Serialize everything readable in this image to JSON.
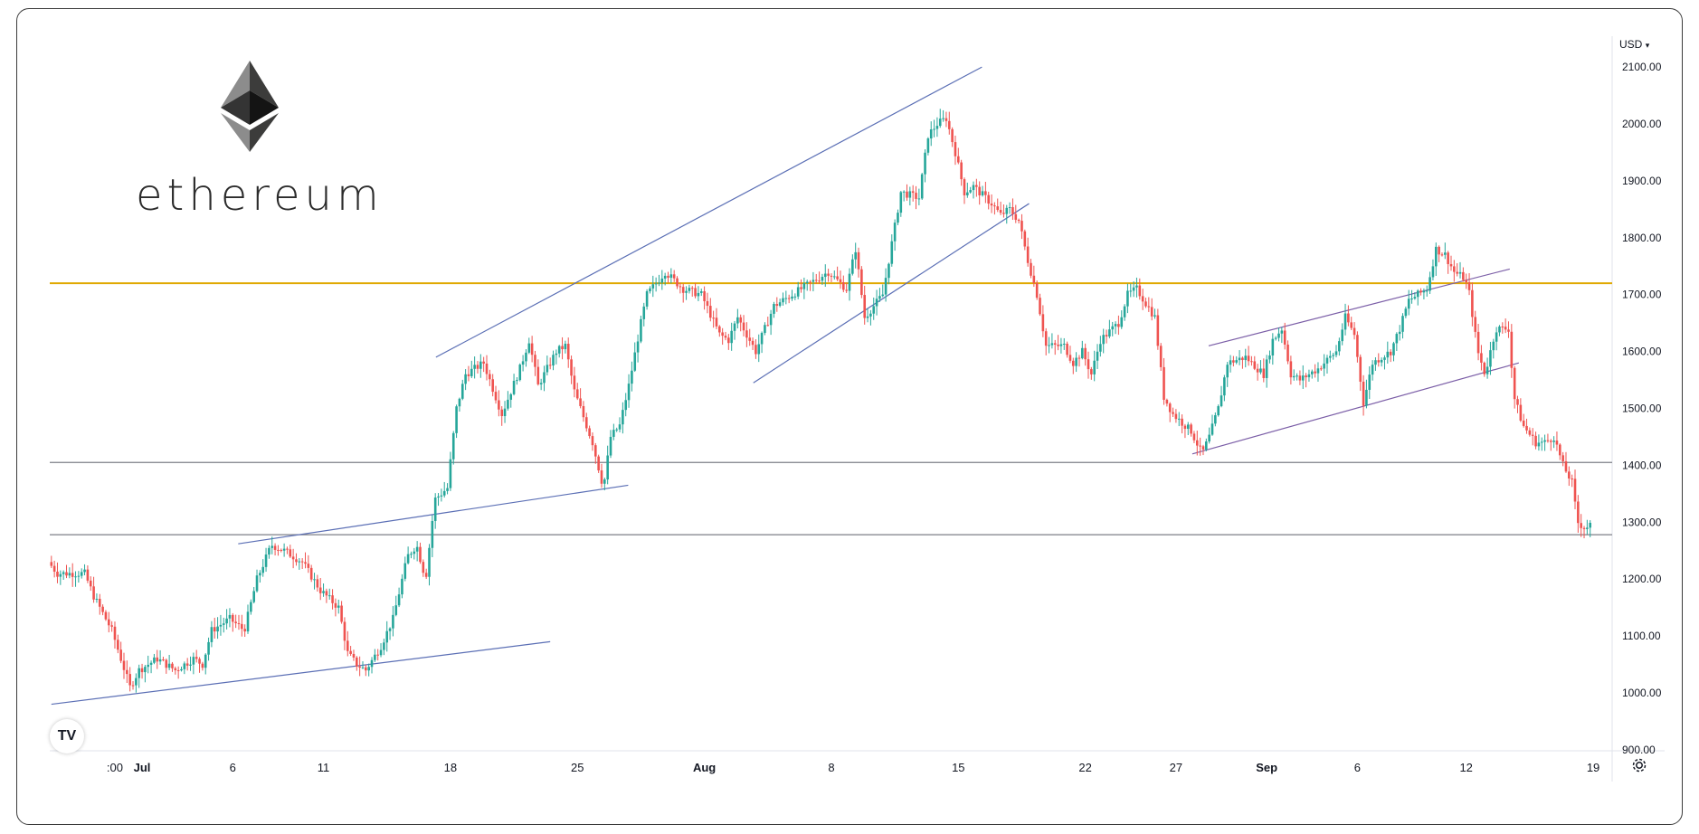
{
  "logo": {
    "brand_text": "ethereum",
    "icon": "ethereum-diamond-icon"
  },
  "price_axis": {
    "currency": "USD",
    "currency_menu_icon": "chevron-down-icon"
  },
  "badge": {
    "label": "TV",
    "icon": "tradingview-logo-icon"
  },
  "settings": {
    "icon": "gear-icon"
  },
  "colors": {
    "up": "#26a69a",
    "down": "#ef5350",
    "trend": "#5b6fb5",
    "purple": "#7b5ea7",
    "gold": "#e0a800",
    "hline": "#7d7f87"
  },
  "chart_data": {
    "type": "candlestick",
    "ylim": [
      900,
      2100
    ],
    "yticks": [
      {
        "value": 900,
        "label": "900.00"
      },
      {
        "value": 1000,
        "label": "1000.00"
      },
      {
        "value": 1100,
        "label": "1100.00"
      },
      {
        "value": 1200,
        "label": "1200.00"
      },
      {
        "value": 1300,
        "label": "1300.00"
      },
      {
        "value": 1400,
        "label": "1400.00"
      },
      {
        "value": 1500,
        "label": "1500.00"
      },
      {
        "value": 1600,
        "label": "1600.00"
      },
      {
        "value": 1700,
        "label": "1700.00"
      },
      {
        "value": 1800,
        "label": "1800.00"
      },
      {
        "value": 1900,
        "label": "1900.00"
      },
      {
        "value": 2000,
        "label": "2000.00"
      },
      {
        "value": 2100,
        "label": "2100.00"
      }
    ],
    "xticks": [
      {
        "day": -0.5,
        "label": ":00"
      },
      {
        "day": 1,
        "label": "Jul"
      },
      {
        "day": 6,
        "label": "6"
      },
      {
        "day": 11,
        "label": "11"
      },
      {
        "day": 18,
        "label": "18"
      },
      {
        "day": 25,
        "label": "25"
      },
      {
        "day": 32,
        "label": "Aug"
      },
      {
        "day": 39,
        "label": "8"
      },
      {
        "day": 46,
        "label": "15"
      },
      {
        "day": 53,
        "label": "22"
      },
      {
        "day": 58,
        "label": "27"
      },
      {
        "day": 63,
        "label": "Sep"
      },
      {
        "day": 68,
        "label": "6"
      },
      {
        "day": 74,
        "label": "12"
      },
      {
        "day": 81,
        "label": "19"
      }
    ],
    "price_path": [
      [
        -4,
        1230
      ],
      [
        -3.5,
        1210
      ],
      [
        -2,
        1210
      ],
      [
        -1.5,
        1170
      ],
      [
        -0.5,
        1110
      ],
      [
        0.5,
        1010
      ],
      [
        1,
        1040
      ],
      [
        2,
        1060
      ],
      [
        3,
        1040
      ],
      [
        4,
        1060
      ],
      [
        4.5,
        1050
      ],
      [
        5,
        1110
      ],
      [
        6,
        1130
      ],
      [
        6.8,
        1110
      ],
      [
        7.5,
        1200
      ],
      [
        8.3,
        1260
      ],
      [
        9,
        1250
      ],
      [
        10,
        1230
      ],
      [
        11,
        1180
      ],
      [
        12,
        1150
      ],
      [
        12.5,
        1070
      ],
      [
        13,
        1050
      ],
      [
        13.5,
        1040
      ],
      [
        14.3,
        1080
      ],
      [
        15,
        1130
      ],
      [
        15.8,
        1240
      ],
      [
        16.3,
        1260
      ],
      [
        16.8,
        1200
      ],
      [
        17.3,
        1340
      ],
      [
        18,
        1360
      ],
      [
        18.5,
        1500
      ],
      [
        19,
        1560
      ],
      [
        20,
        1580
      ],
      [
        21,
        1490
      ],
      [
        22,
        1570
      ],
      [
        22.5,
        1620
      ],
      [
        23,
        1540
      ],
      [
        24,
        1600
      ],
      [
        24.5,
        1610
      ],
      [
        25,
        1530
      ],
      [
        26,
        1440
      ],
      [
        26.6,
        1360
      ],
      [
        27,
        1450
      ],
      [
        27.5,
        1470
      ],
      [
        28,
        1540
      ],
      [
        28.6,
        1640
      ],
      [
        29,
        1700
      ],
      [
        30,
        1740
      ],
      [
        31,
        1710
      ],
      [
        32,
        1700
      ],
      [
        33,
        1630
      ],
      [
        33.5,
        1620
      ],
      [
        34,
        1660
      ],
      [
        35,
        1600
      ],
      [
        36,
        1680
      ],
      [
        37,
        1700
      ],
      [
        38,
        1720
      ],
      [
        39,
        1740
      ],
      [
        40,
        1710
      ],
      [
        40.5,
        1780
      ],
      [
        41,
        1660
      ],
      [
        42,
        1700
      ],
      [
        42.5,
        1790
      ],
      [
        43,
        1880
      ],
      [
        44,
        1870
      ],
      [
        44.5,
        1980
      ],
      [
        45,
        2000
      ],
      [
        45.5,
        2010
      ],
      [
        46,
        1950
      ],
      [
        46.5,
        1880
      ],
      [
        47,
        1890
      ],
      [
        48,
        1860
      ],
      [
        48.5,
        1840
      ],
      [
        49,
        1850
      ],
      [
        49.5,
        1830
      ],
      [
        50,
        1760
      ],
      [
        50.5,
        1700
      ],
      [
        51,
        1610
      ],
      [
        52,
        1610
      ],
      [
        52.5,
        1580
      ],
      [
        53,
        1600
      ],
      [
        53.5,
        1560
      ],
      [
        54,
        1620
      ],
      [
        55,
        1650
      ],
      [
        55.5,
        1700
      ],
      [
        56,
        1710
      ],
      [
        57,
        1660
      ],
      [
        57.5,
        1520
      ],
      [
        58,
        1490
      ],
      [
        59,
        1460
      ],
      [
        59.6,
        1420
      ],
      [
        60,
        1450
      ],
      [
        60.5,
        1500
      ],
      [
        61,
        1580
      ],
      [
        62,
        1590
      ],
      [
        63,
        1560
      ],
      [
        63.5,
        1620
      ],
      [
        64,
        1640
      ],
      [
        64.5,
        1560
      ],
      [
        65,
        1550
      ],
      [
        66,
        1570
      ],
      [
        67,
        1600
      ],
      [
        67.5,
        1660
      ],
      [
        68,
        1630
      ],
      [
        68.5,
        1510
      ],
      [
        69,
        1580
      ],
      [
        70,
        1600
      ],
      [
        70.5,
        1640
      ],
      [
        71,
        1690
      ],
      [
        71.5,
        1700
      ],
      [
        72,
        1710
      ],
      [
        72.5,
        1780
      ],
      [
        73,
        1770
      ],
      [
        73.5,
        1740
      ],
      [
        74,
        1730
      ],
      [
        74.3,
        1710
      ],
      [
        74.8,
        1600
      ],
      [
        75.2,
        1560
      ],
      [
        75.8,
        1640
      ],
      [
        76.5,
        1640
      ],
      [
        76.8,
        1520
      ],
      [
        77.3,
        1470
      ],
      [
        78,
        1440
      ],
      [
        78.5,
        1440
      ],
      [
        79,
        1450
      ],
      [
        79.5,
        1400
      ],
      [
        80,
        1370
      ],
      [
        80.3,
        1300
      ],
      [
        80.7,
        1290
      ],
      [
        81,
        1295
      ]
    ],
    "annotations": {
      "hlines": [
        {
          "name": "gold-resistance",
          "value": 1720
        },
        {
          "name": "upper-support",
          "value": 1405
        },
        {
          "name": "lower-support",
          "value": 1278
        }
      ],
      "trendlines": [
        {
          "name": "channel-upper-1",
          "p1": [
            17.2,
            1590
          ],
          "p2": [
            47.3,
            2100
          ]
        },
        {
          "name": "channel-lower-1",
          "p1": [
            34.7,
            1545
          ],
          "p2": [
            49.9,
            1860
          ]
        },
        {
          "name": "support-line-1",
          "p1": [
            -4,
            980
          ],
          "p2": [
            23.5,
            1090
          ]
        },
        {
          "name": "support-line-2",
          "p1": [
            6.3,
            1262
          ],
          "p2": [
            27.8,
            1365
          ]
        },
        {
          "name": "channel-upper-2",
          "p1": [
            59.8,
            1610
          ],
          "p2": [
            76.4,
            1745
          ]
        },
        {
          "name": "channel-lower-2",
          "p1": [
            58.9,
            1420
          ],
          "p2": [
            76.9,
            1580
          ]
        }
      ]
    }
  }
}
